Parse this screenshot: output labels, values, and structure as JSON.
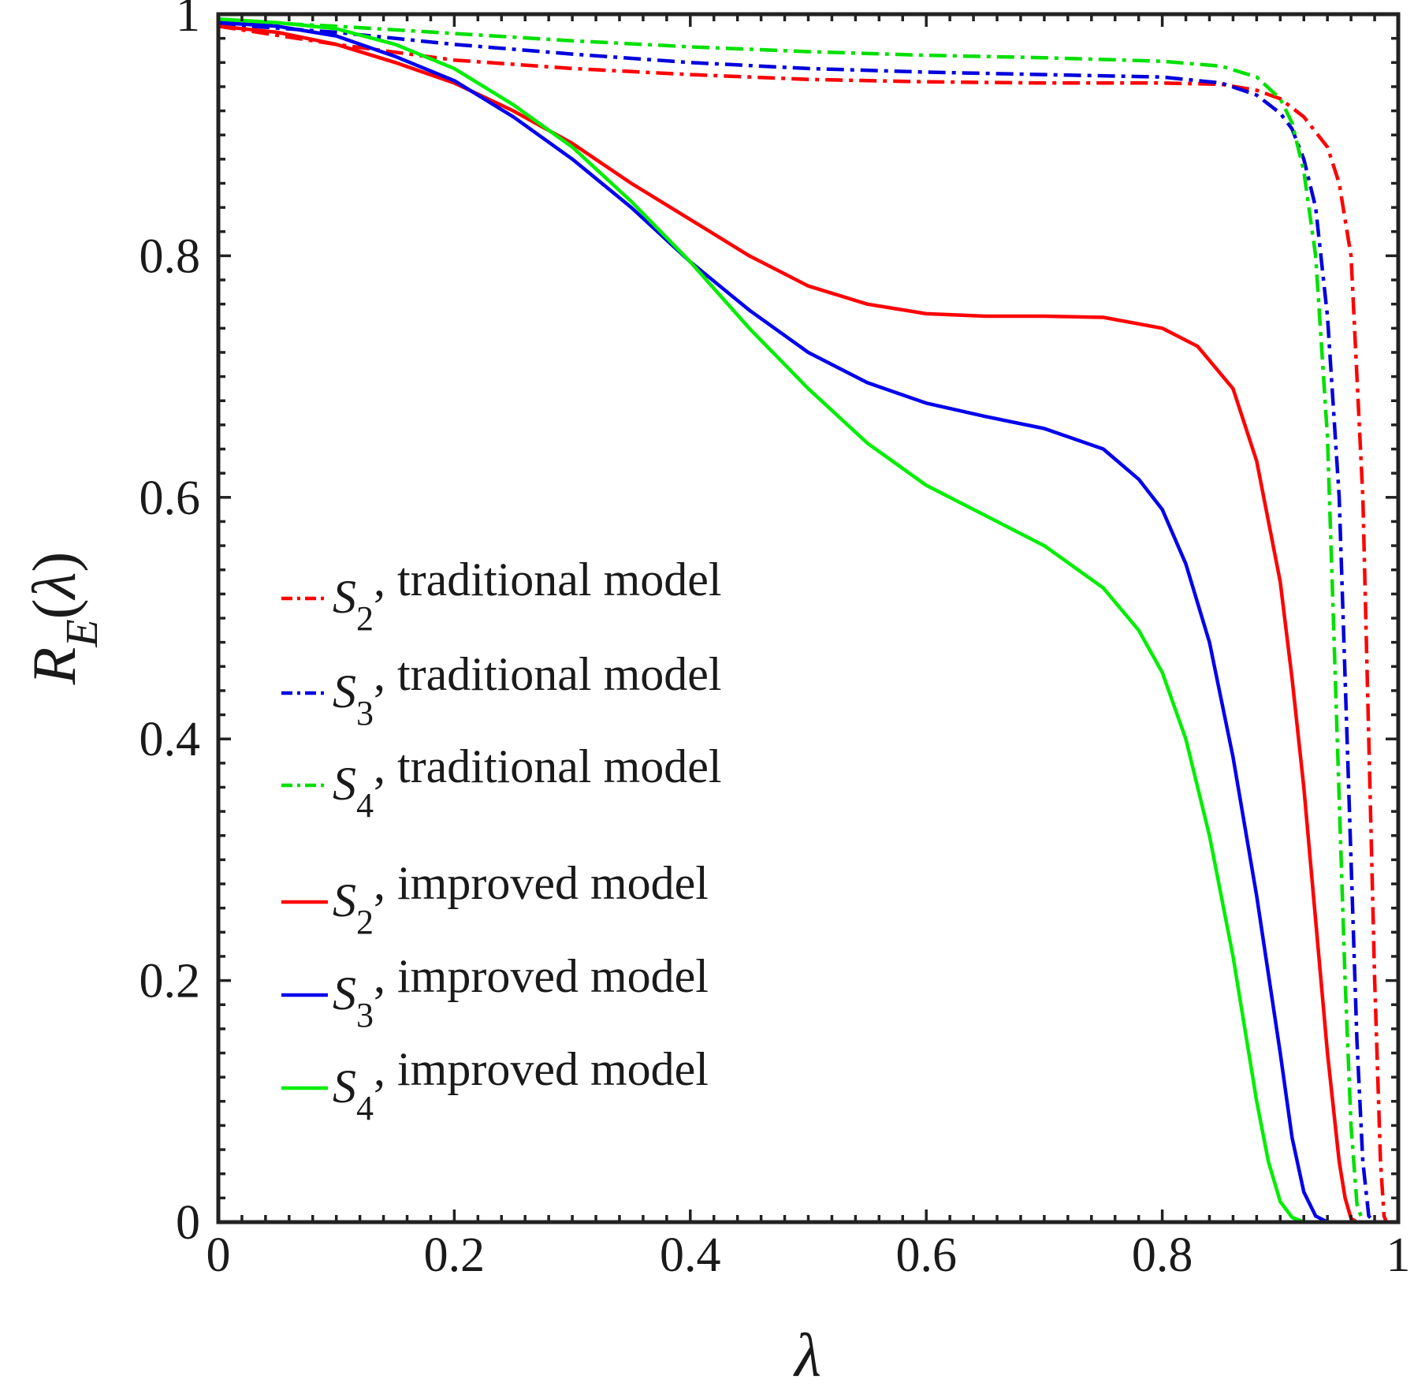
{
  "chart_data": {
    "type": "line",
    "title": "",
    "xlabel": "λ",
    "ylabel": {
      "symbol": "R",
      "subscript": "E",
      "arg_open": "(",
      "arg": "λ",
      "arg_close": ")"
    },
    "xlim": [
      0,
      1
    ],
    "ylim": [
      0,
      1
    ],
    "grid": false,
    "legend_position": "center-left",
    "xticks": [
      {
        "value": 0,
        "label": "0"
      },
      {
        "value": 0.2,
        "label": "0.2"
      },
      {
        "value": 0.4,
        "label": "0.4"
      },
      {
        "value": 0.6,
        "label": "0.6"
      },
      {
        "value": 0.8,
        "label": "0.8"
      },
      {
        "value": 1,
        "label": "1"
      }
    ],
    "yticks": [
      {
        "value": 0,
        "label": "0"
      },
      {
        "value": 0.2,
        "label": "0.2"
      },
      {
        "value": 0.4,
        "label": "0.4"
      },
      {
        "value": 0.6,
        "label": "0.6"
      },
      {
        "value": 0.8,
        "label": "0.8"
      },
      {
        "value": 1,
        "label": "1"
      }
    ],
    "series": [
      {
        "id": "s2-traditional",
        "symbol": "S",
        "subscript": "2",
        "suffix": ", traditional model",
        "color": "#ff0000",
        "style": "dashdot",
        "points": [
          [
            0,
            0.99
          ],
          [
            0.1,
            0.975
          ],
          [
            0.2,
            0.962
          ],
          [
            0.3,
            0.955
          ],
          [
            0.4,
            0.95
          ],
          [
            0.5,
            0.946
          ],
          [
            0.6,
            0.944
          ],
          [
            0.7,
            0.943
          ],
          [
            0.8,
            0.943
          ],
          [
            0.85,
            0.942
          ],
          [
            0.88,
            0.937
          ],
          [
            0.9,
            0.93
          ],
          [
            0.92,
            0.915
          ],
          [
            0.94,
            0.89
          ],
          [
            0.95,
            0.86
          ],
          [
            0.96,
            0.8
          ],
          [
            0.97,
            0.6
          ],
          [
            0.975,
            0.4
          ],
          [
            0.98,
            0.2
          ],
          [
            0.985,
            0.05
          ],
          [
            0.988,
            0.005
          ],
          [
            0.99,
            0
          ],
          [
            1,
            0
          ]
        ]
      },
      {
        "id": "s3-traditional",
        "symbol": "S",
        "subscript": "3",
        "suffix": ", traditional model",
        "color": "#0000dd",
        "style": "dashdot",
        "points": [
          [
            0,
            0.992
          ],
          [
            0.1,
            0.985
          ],
          [
            0.2,
            0.975
          ],
          [
            0.3,
            0.967
          ],
          [
            0.4,
            0.96
          ],
          [
            0.5,
            0.955
          ],
          [
            0.6,
            0.952
          ],
          [
            0.7,
            0.95
          ],
          [
            0.8,
            0.948
          ],
          [
            0.85,
            0.943
          ],
          [
            0.88,
            0.933
          ],
          [
            0.9,
            0.918
          ],
          [
            0.91,
            0.905
          ],
          [
            0.92,
            0.88
          ],
          [
            0.93,
            0.84
          ],
          [
            0.94,
            0.75
          ],
          [
            0.95,
            0.6
          ],
          [
            0.955,
            0.45
          ],
          [
            0.96,
            0.3
          ],
          [
            0.965,
            0.15
          ],
          [
            0.97,
            0.05
          ],
          [
            0.975,
            0.005
          ],
          [
            0.98,
            0
          ],
          [
            1,
            0
          ]
        ]
      },
      {
        "id": "s4-traditional",
        "symbol": "S",
        "subscript": "4",
        "suffix": ", traditional model",
        "color": "#00e000",
        "style": "dashdot",
        "points": [
          [
            0,
            0.995
          ],
          [
            0.1,
            0.99
          ],
          [
            0.2,
            0.984
          ],
          [
            0.3,
            0.978
          ],
          [
            0.4,
            0.973
          ],
          [
            0.5,
            0.969
          ],
          [
            0.6,
            0.966
          ],
          [
            0.7,
            0.964
          ],
          [
            0.8,
            0.961
          ],
          [
            0.85,
            0.957
          ],
          [
            0.88,
            0.948
          ],
          [
            0.9,
            0.93
          ],
          [
            0.91,
            0.91
          ],
          [
            0.92,
            0.87
          ],
          [
            0.93,
            0.8
          ],
          [
            0.94,
            0.65
          ],
          [
            0.945,
            0.5
          ],
          [
            0.95,
            0.35
          ],
          [
            0.955,
            0.2
          ],
          [
            0.96,
            0.08
          ],
          [
            0.965,
            0.015
          ],
          [
            0.97,
            0
          ],
          [
            1,
            0
          ]
        ]
      },
      {
        "id": "s2-improved",
        "symbol": "S",
        "subscript": "2",
        "suffix": ", improved model",
        "color": "#ff0000",
        "style": "solid",
        "points": [
          [
            0,
            0.99
          ],
          [
            0.05,
            0.985
          ],
          [
            0.1,
            0.975
          ],
          [
            0.15,
            0.96
          ],
          [
            0.2,
            0.943
          ],
          [
            0.25,
            0.92
          ],
          [
            0.3,
            0.893
          ],
          [
            0.35,
            0.86
          ],
          [
            0.4,
            0.83
          ],
          [
            0.45,
            0.8
          ],
          [
            0.5,
            0.775
          ],
          [
            0.55,
            0.76
          ],
          [
            0.6,
            0.752
          ],
          [
            0.65,
            0.75
          ],
          [
            0.7,
            0.75
          ],
          [
            0.75,
            0.749
          ],
          [
            0.8,
            0.74
          ],
          [
            0.83,
            0.725
          ],
          [
            0.86,
            0.69
          ],
          [
            0.88,
            0.63
          ],
          [
            0.9,
            0.53
          ],
          [
            0.91,
            0.45
          ],
          [
            0.92,
            0.36
          ],
          [
            0.93,
            0.25
          ],
          [
            0.94,
            0.14
          ],
          [
            0.95,
            0.05
          ],
          [
            0.955,
            0.02
          ],
          [
            0.96,
            0.003
          ],
          [
            0.965,
            0
          ],
          [
            1,
            0
          ]
        ]
      },
      {
        "id": "s3-improved",
        "symbol": "S",
        "subscript": "3",
        "suffix": ", improved model",
        "color": "#0000ee",
        "style": "solid",
        "points": [
          [
            0,
            0.993
          ],
          [
            0.05,
            0.99
          ],
          [
            0.1,
            0.982
          ],
          [
            0.15,
            0.965
          ],
          [
            0.2,
            0.945
          ],
          [
            0.25,
            0.915
          ],
          [
            0.3,
            0.88
          ],
          [
            0.35,
            0.84
          ],
          [
            0.4,
            0.795
          ],
          [
            0.45,
            0.755
          ],
          [
            0.5,
            0.72
          ],
          [
            0.55,
            0.695
          ],
          [
            0.6,
            0.678
          ],
          [
            0.65,
            0.667
          ],
          [
            0.7,
            0.657
          ],
          [
            0.75,
            0.64
          ],
          [
            0.78,
            0.615
          ],
          [
            0.8,
            0.59
          ],
          [
            0.82,
            0.545
          ],
          [
            0.84,
            0.48
          ],
          [
            0.86,
            0.385
          ],
          [
            0.88,
            0.27
          ],
          [
            0.9,
            0.14
          ],
          [
            0.91,
            0.07
          ],
          [
            0.92,
            0.025
          ],
          [
            0.93,
            0.005
          ],
          [
            0.94,
            0
          ],
          [
            1,
            0
          ]
        ]
      },
      {
        "id": "s4-improved",
        "symbol": "S",
        "subscript": "4",
        "suffix": ", improved model",
        "color": "#00ee00",
        "style": "solid",
        "points": [
          [
            0,
            0.996
          ],
          [
            0.05,
            0.993
          ],
          [
            0.1,
            0.988
          ],
          [
            0.15,
            0.975
          ],
          [
            0.2,
            0.955
          ],
          [
            0.25,
            0.925
          ],
          [
            0.3,
            0.89
          ],
          [
            0.35,
            0.845
          ],
          [
            0.4,
            0.795
          ],
          [
            0.45,
            0.74
          ],
          [
            0.5,
            0.69
          ],
          [
            0.55,
            0.645
          ],
          [
            0.6,
            0.61
          ],
          [
            0.65,
            0.585
          ],
          [
            0.7,
            0.56
          ],
          [
            0.75,
            0.525
          ],
          [
            0.78,
            0.49
          ],
          [
            0.8,
            0.455
          ],
          [
            0.82,
            0.4
          ],
          [
            0.84,
            0.32
          ],
          [
            0.86,
            0.22
          ],
          [
            0.87,
            0.16
          ],
          [
            0.88,
            0.1
          ],
          [
            0.89,
            0.05
          ],
          [
            0.9,
            0.017
          ],
          [
            0.91,
            0.004
          ],
          [
            0.92,
            0
          ],
          [
            1,
            0
          ]
        ]
      }
    ]
  }
}
